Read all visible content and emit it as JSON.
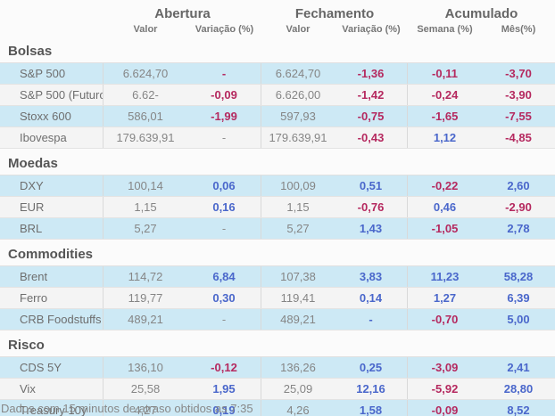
{
  "header": {
    "groups": [
      {
        "label": "Abertura"
      },
      {
        "label": "Fechamento"
      },
      {
        "label": "Acumulado"
      }
    ],
    "subheaders": [
      "Valor",
      "Variação (%)",
      "Valor",
      "Variação (%)",
      "Semana (%)",
      "Mês(%)"
    ]
  },
  "colors": {
    "negative": "#b5295f",
    "positive": "#4a67cb",
    "neutral": "#8f8f8f",
    "row_blue": "#cde9f5",
    "row_gray": "#f4f4f4"
  },
  "sections": [
    {
      "title": "Bolsas",
      "rows": [
        {
          "label": "S&P 500",
          "abertura_valor": "6.624,70",
          "abertura_var": {
            "text": "-",
            "tone": "negative"
          },
          "fechamento_valor": "6.624,70",
          "fechamento_var": {
            "text": "-1,36",
            "tone": "negative"
          },
          "semana": {
            "text": "-0,11",
            "tone": "negative"
          },
          "mes": {
            "text": "-3,70",
            "tone": "negative"
          }
        },
        {
          "label": "S&P 500 (Futuro)",
          "abertura_valor": "6.62-",
          "abertura_var": {
            "text": "-0,09",
            "tone": "negative"
          },
          "fechamento_valor": "6.626,00",
          "fechamento_var": {
            "text": "-1,42",
            "tone": "negative"
          },
          "semana": {
            "text": "-0,24",
            "tone": "negative"
          },
          "mes": {
            "text": "-3,90",
            "tone": "negative"
          }
        },
        {
          "label": "Stoxx 600",
          "abertura_valor": "586,01",
          "abertura_var": {
            "text": "-1,99",
            "tone": "negative"
          },
          "fechamento_valor": "597,93",
          "fechamento_var": {
            "text": "-0,75",
            "tone": "negative"
          },
          "semana": {
            "text": "-1,65",
            "tone": "negative"
          },
          "mes": {
            "text": "-7,55",
            "tone": "negative"
          }
        },
        {
          "label": "Ibovespa",
          "abertura_valor": "179.639,91",
          "abertura_var": {
            "text": "-",
            "tone": "neutral"
          },
          "fechamento_valor": "179.639,91",
          "fechamento_var": {
            "text": "-0,43",
            "tone": "negative"
          },
          "semana": {
            "text": "1,12",
            "tone": "positive"
          },
          "mes": {
            "text": "-4,85",
            "tone": "negative"
          }
        }
      ]
    },
    {
      "title": "Moedas",
      "rows": [
        {
          "label": "DXY",
          "abertura_valor": "100,14",
          "abertura_var": {
            "text": "0,06",
            "tone": "positive"
          },
          "fechamento_valor": "100,09",
          "fechamento_var": {
            "text": "0,51",
            "tone": "positive"
          },
          "semana": {
            "text": "-0,22",
            "tone": "negative"
          },
          "mes": {
            "text": "2,60",
            "tone": "positive"
          }
        },
        {
          "label": "EUR",
          "abertura_valor": "1,15",
          "abertura_var": {
            "text": "0,16",
            "tone": "positive"
          },
          "fechamento_valor": "1,15",
          "fechamento_var": {
            "text": "-0,76",
            "tone": "negative"
          },
          "semana": {
            "text": "0,46",
            "tone": "positive"
          },
          "mes": {
            "text": "-2,90",
            "tone": "negative"
          }
        },
        {
          "label": "BRL",
          "abertura_valor": "5,27",
          "abertura_var": {
            "text": "-",
            "tone": "neutral"
          },
          "fechamento_valor": "5,27",
          "fechamento_var": {
            "text": "1,43",
            "tone": "positive"
          },
          "semana": {
            "text": "-1,05",
            "tone": "negative"
          },
          "mes": {
            "text": "2,78",
            "tone": "positive"
          }
        }
      ]
    },
    {
      "title": "Commodities",
      "rows": [
        {
          "label": "Brent",
          "abertura_valor": "114,72",
          "abertura_var": {
            "text": "6,84",
            "tone": "positive"
          },
          "fechamento_valor": "107,38",
          "fechamento_var": {
            "text": "3,83",
            "tone": "positive"
          },
          "semana": {
            "text": "11,23",
            "tone": "positive"
          },
          "mes": {
            "text": "58,28",
            "tone": "positive"
          }
        },
        {
          "label": "Ferro",
          "abertura_valor": "119,77",
          "abertura_var": {
            "text": "0,30",
            "tone": "positive"
          },
          "fechamento_valor": "119,41",
          "fechamento_var": {
            "text": "0,14",
            "tone": "positive"
          },
          "semana": {
            "text": "1,27",
            "tone": "positive"
          },
          "mes": {
            "text": "6,39",
            "tone": "positive"
          }
        },
        {
          "label": "CRB Foodstuffs",
          "abertura_valor": "489,21",
          "abertura_var": {
            "text": "-",
            "tone": "neutral"
          },
          "fechamento_valor": "489,21",
          "fechamento_var": {
            "text": "-",
            "tone": "positive"
          },
          "semana": {
            "text": "-0,70",
            "tone": "negative"
          },
          "mes": {
            "text": "5,00",
            "tone": "positive"
          }
        }
      ]
    },
    {
      "title": "Risco",
      "rows": [
        {
          "label": "CDS 5Y",
          "abertura_valor": "136,10",
          "abertura_var": {
            "text": "-0,12",
            "tone": "negative"
          },
          "fechamento_valor": "136,26",
          "fechamento_var": {
            "text": "0,25",
            "tone": "positive"
          },
          "semana": {
            "text": "-3,09",
            "tone": "negative"
          },
          "mes": {
            "text": "2,41",
            "tone": "positive"
          }
        },
        {
          "label": "Vix",
          "abertura_valor": "25,58",
          "abertura_var": {
            "text": "1,95",
            "tone": "positive"
          },
          "fechamento_valor": "25,09",
          "fechamento_var": {
            "text": "12,16",
            "tone": "positive"
          },
          "semana": {
            "text": "-5,92",
            "tone": "negative"
          },
          "mes": {
            "text": "28,80",
            "tone": "positive"
          }
        },
        {
          "label": "Treasury 10y",
          "abertura_valor": "4,27",
          "abertura_var": {
            "text": "0,19",
            "tone": "positive"
          },
          "fechamento_valor": "4,26",
          "fechamento_var": {
            "text": "1,58",
            "tone": "positive"
          },
          "semana": {
            "text": "-0,09",
            "tone": "negative"
          },
          "mes": {
            "text": "8,52",
            "tone": "positive"
          }
        }
      ]
    }
  ],
  "footer": {
    "text": "Dados com 15 minutos de atraso obtidos as 7:35"
  }
}
